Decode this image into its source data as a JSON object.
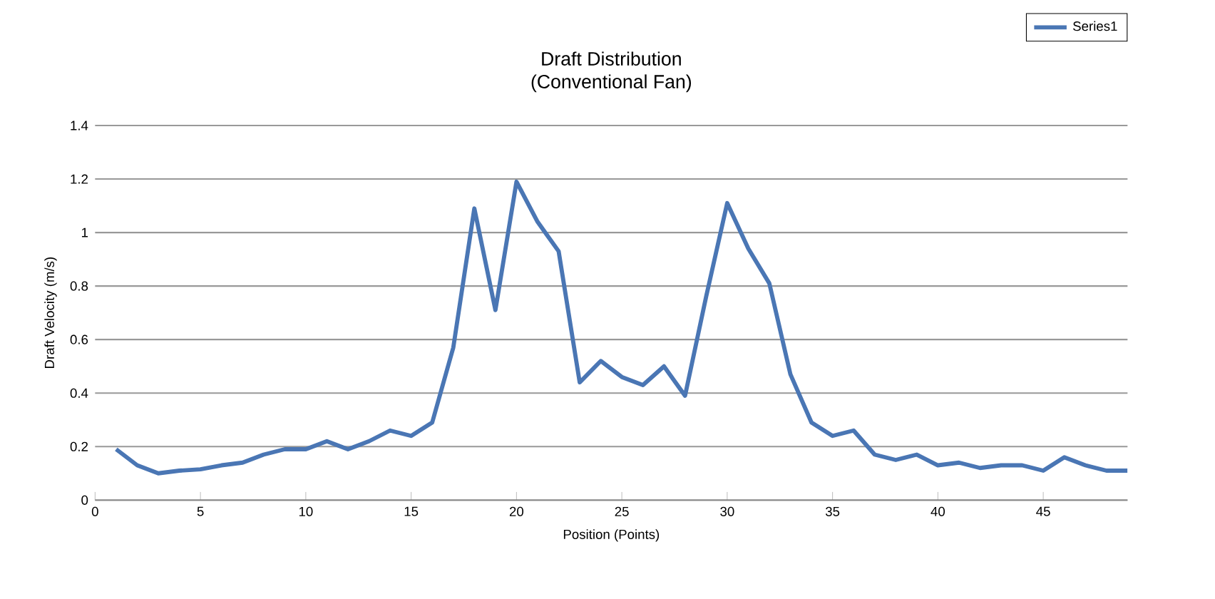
{
  "chart_data": {
    "type": "line",
    "title": "Draft Distribution",
    "subtitle": "(Conventional Fan)",
    "xlabel": "Position (Points)",
    "ylabel": "Draft Velocity (m/s)",
    "x": [
      1,
      2,
      3,
      4,
      5,
      6,
      7,
      8,
      9,
      10,
      11,
      12,
      13,
      14,
      15,
      16,
      17,
      18,
      19,
      20,
      21,
      22,
      23,
      24,
      25,
      26,
      27,
      28,
      29,
      30,
      31,
      32,
      33,
      34,
      35,
      36,
      37,
      38,
      39,
      40,
      41,
      42,
      43,
      44,
      45,
      46,
      47,
      48,
      49
    ],
    "series": [
      {
        "name": "Series1",
        "color": "#4a76b4",
        "values": [
          0.19,
          0.13,
          0.1,
          0.11,
          0.115,
          0.13,
          0.14,
          0.17,
          0.19,
          0.19,
          0.22,
          0.19,
          0.22,
          0.26,
          0.24,
          0.29,
          0.57,
          1.09,
          0.71,
          1.19,
          1.04,
          0.93,
          0.44,
          0.52,
          0.46,
          0.43,
          0.5,
          0.39,
          0.76,
          1.11,
          0.94,
          0.81,
          0.47,
          0.29,
          0.24,
          0.26,
          0.17,
          0.15,
          0.17,
          0.13,
          0.14,
          0.12,
          0.13,
          0.13,
          0.11,
          0.16,
          0.13,
          0.11,
          0.11
        ]
      }
    ],
    "xlim": [
      0,
      49
    ],
    "xticks": [
      0,
      5,
      10,
      15,
      20,
      25,
      30,
      35,
      40,
      45
    ],
    "ylim": [
      0,
      1.4
    ],
    "yticks": [
      0,
      0.2,
      0.4,
      0.6,
      0.8,
      1,
      1.2,
      1.4
    ],
    "grid": "y",
    "legend": "top right",
    "marker": "none",
    "line_style": "solid"
  }
}
